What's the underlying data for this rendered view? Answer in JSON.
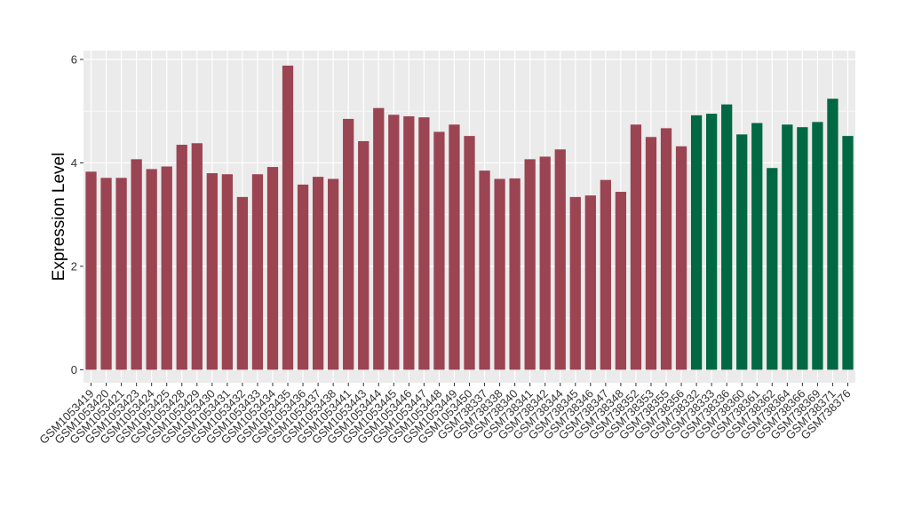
{
  "chart_data": {
    "type": "bar",
    "ylabel": "Expression Level",
    "xlabel": "",
    "ylim": [
      -0.25,
      6.17
    ],
    "yticks": [
      0,
      2,
      4,
      6
    ],
    "ytick_labels": [
      "0",
      "2",
      "4",
      "6"
    ],
    "grid": true,
    "legend": "none",
    "colors": {
      "group_a": "#9b4452",
      "group_b": "#006843",
      "panel": "#ebebeb",
      "grid": "#ffffff"
    },
    "categories": [
      "GSM1053419",
      "GSM1053420",
      "GSM1053421",
      "GSM1053423",
      "GSM1053424",
      "GSM1053425",
      "GSM1053428",
      "GSM1053429",
      "GSM1053430",
      "GSM1053431",
      "GSM1053432",
      "GSM1053433",
      "GSM1053434",
      "GSM1053435",
      "GSM1053436",
      "GSM1053437",
      "GSM1053438",
      "GSM1053441",
      "GSM1053443",
      "GSM1053444",
      "GSM1053445",
      "GSM1053446",
      "GSM1053447",
      "GSM1053448",
      "GSM1053449",
      "GSM1053450",
      "GSM738337",
      "GSM738338",
      "GSM738340",
      "GSM738341",
      "GSM738342",
      "GSM738344",
      "GSM738345",
      "GSM738346",
      "GSM738347",
      "GSM738348",
      "GSM738352",
      "GSM738353",
      "GSM738355",
      "GSM738356",
      "GSM738332",
      "GSM738333",
      "GSM738336",
      "GSM738360",
      "GSM738361",
      "GSM738362",
      "GSM738364",
      "GSM738366",
      "GSM738369",
      "GSM738371",
      "GSM738376"
    ],
    "values": [
      3.83,
      3.71,
      3.71,
      4.07,
      3.88,
      3.93,
      4.35,
      4.38,
      3.8,
      3.78,
      3.34,
      3.78,
      3.92,
      5.88,
      3.58,
      3.73,
      3.69,
      4.85,
      4.42,
      5.06,
      4.93,
      4.9,
      4.88,
      4.6,
      4.74,
      4.52,
      3.85,
      3.69,
      3.7,
      4.07,
      4.12,
      4.26,
      3.34,
      3.37,
      3.67,
      3.44,
      4.74,
      4.5,
      4.67,
      4.32,
      4.92,
      4.95,
      5.13,
      4.55,
      4.77,
      3.9,
      4.74,
      4.69,
      4.79,
      5.24,
      4.52
    ],
    "groups": [
      "a",
      "a",
      "a",
      "a",
      "a",
      "a",
      "a",
      "a",
      "a",
      "a",
      "a",
      "a",
      "a",
      "a",
      "a",
      "a",
      "a",
      "a",
      "a",
      "a",
      "a",
      "a",
      "a",
      "a",
      "a",
      "a",
      "a",
      "a",
      "a",
      "a",
      "a",
      "a",
      "a",
      "a",
      "a",
      "a",
      "a",
      "a",
      "a",
      "a",
      "b",
      "b",
      "b",
      "b",
      "b",
      "b",
      "b",
      "b",
      "b",
      "b",
      "b"
    ]
  }
}
